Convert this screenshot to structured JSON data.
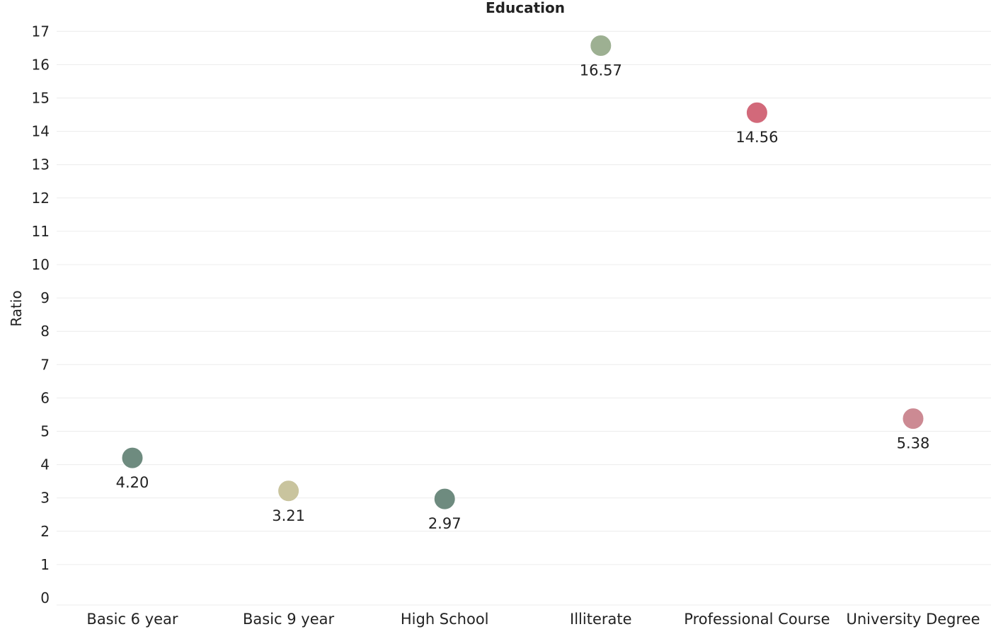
{
  "chart_data": {
    "type": "scatter",
    "title": "Education",
    "xlabel": "",
    "ylabel": "Ratio",
    "ylim": [
      0,
      17.4
    ],
    "yticks": [
      0,
      1,
      2,
      3,
      4,
      5,
      6,
      7,
      8,
      9,
      10,
      11,
      12,
      13,
      14,
      15,
      16,
      17
    ],
    "grid": true,
    "categories": [
      "Basic 6 year",
      "Basic 9 year",
      "High School",
      "Illiterate",
      "Professional Course",
      "University Degree"
    ],
    "values": [
      4.2,
      3.21,
      2.97,
      16.57,
      14.56,
      5.38
    ],
    "labels": [
      "4.20",
      "3.21",
      "2.97",
      "16.57",
      "14.56",
      "5.38"
    ],
    "colors": [
      "#6e8b7f",
      "#c9c49e",
      "#6e8b7f",
      "#9db092",
      "#d2697a",
      "#cc8a93"
    ]
  }
}
